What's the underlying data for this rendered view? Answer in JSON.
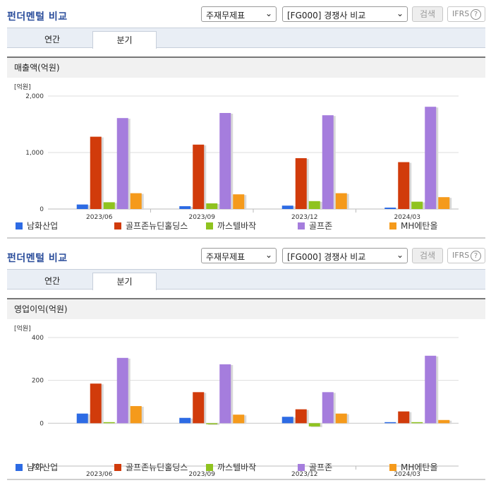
{
  "colors": {
    "title": "#2a4d9b",
    "series": [
      "#2d6be4",
      "#d13b0b",
      "#8fc31f",
      "#a57ddd",
      "#f59a1b"
    ]
  },
  "icons": {
    "select_arrow": "chevron-down-icon",
    "help": "help-circle-icon"
  },
  "sections": [
    {
      "title": "펀더멘털 비교",
      "select1": "주재무제표",
      "select2": "[FG000] 경쟁사 비교",
      "search_label": "검색",
      "ifrs_label": "IFRS",
      "help_symbol": "?",
      "tabs": [
        "연간",
        "분기"
      ],
      "active_tab": "분기",
      "panel_title": "매출액(억원)",
      "legend": [
        "남화산업",
        "골프존뉴딘홀딩스",
        "까스텔바작",
        "골프존",
        "MH에탄올"
      ]
    },
    {
      "title": "펀더멘털 비교",
      "select1": "주재무제표",
      "select2": "[FG000] 경쟁사 비교",
      "search_label": "검색",
      "ifrs_label": "IFRS",
      "help_symbol": "?",
      "tabs": [
        "연간",
        "분기"
      ],
      "active_tab": "분기",
      "panel_title": "영업이익(억원)",
      "legend": [
        "남화산업",
        "골프존뉴딘홀딩스",
        "까스텔바작",
        "골프존",
        "MH에탄올"
      ]
    }
  ],
  "chart_data": [
    {
      "type": "bar",
      "title": "매출액(억원)",
      "unit_label": "[억원]",
      "categories": [
        "2023/06",
        "2023/09",
        "2023/12",
        "2024/03"
      ],
      "y_ticks": [
        "2,000",
        "1,000",
        "0"
      ],
      "ylim": [
        0,
        2000
      ],
      "grid": true,
      "legend_position": "bottom",
      "series": [
        {
          "name": "남화산업",
          "values": [
            80,
            50,
            60,
            25
          ]
        },
        {
          "name": "골프존뉴딘홀딩스",
          "values": [
            1280,
            1140,
            900,
            830
          ]
        },
        {
          "name": "까스텔바작",
          "values": [
            120,
            100,
            140,
            130
          ]
        },
        {
          "name": "골프존",
          "values": [
            1610,
            1700,
            1660,
            1810
          ]
        },
        {
          "name": "MH에탄올",
          "values": [
            280,
            260,
            280,
            210
          ]
        }
      ]
    },
    {
      "type": "bar",
      "title": "영업이익(억원)",
      "unit_label": "[억원]",
      "categories": [
        "2023/06",
        "2023/09",
        "2023/12",
        "2024/03"
      ],
      "y_ticks": [
        "400",
        "200",
        "0",
        "-200"
      ],
      "ylim": [
        -200,
        400
      ],
      "grid": true,
      "legend_position": "bottom",
      "series": [
        {
          "name": "남화산업",
          "values": [
            45,
            25,
            30,
            5
          ]
        },
        {
          "name": "골프존뉴딘홀딩스",
          "values": [
            185,
            145,
            65,
            55
          ]
        },
        {
          "name": "까스텔바작",
          "values": [
            5,
            0,
            -15,
            5
          ]
        },
        {
          "name": "골프존",
          "values": [
            305,
            275,
            145,
            315
          ]
        },
        {
          "name": "MH에탄올",
          "values": [
            80,
            40,
            45,
            15
          ]
        }
      ]
    }
  ]
}
